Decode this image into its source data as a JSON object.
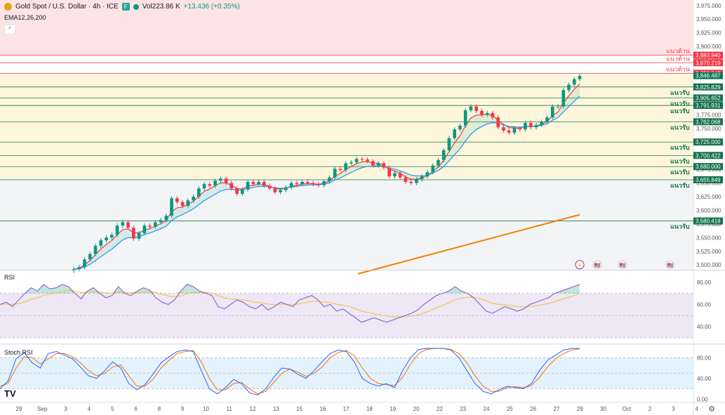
{
  "header": {
    "symbol": "Gold Spot / U.S. Dollar · 4h · ICE",
    "volume": "Vol223.86 K",
    "change": "+13.436 (+0.35%)",
    "indicator": "EMA12,26,200",
    "flag_label": "F"
  },
  "colors": {
    "up": "#089981",
    "down": "#f23645",
    "ema12": "#f23645",
    "ema26": "#2196f3",
    "ema200": "#f57c00",
    "resistance_label": "#f23645",
    "support_label": "#089981"
  },
  "chart_data": {
    "type": "candlestick",
    "title": "Gold Spot / U.S. Dollar · 4h · ICE",
    "ylim": [
      3490,
      3985
    ],
    "y_ticks": [
      "3,975.000",
      "3,950.000",
      "3,925.000",
      "3,900.000",
      "3,875.000",
      "3,850.000",
      "3,825.000",
      "3,800.000",
      "3,775.000",
      "3,750.000",
      "3,725.000",
      "3,700.000",
      "3,675.000",
      "3,650.000",
      "3,625.000",
      "3,600.000",
      "3,575.000",
      "3,550.000",
      "3,525.000",
      "3,500.000"
    ],
    "x_ticks": [
      "29",
      "Sep",
      "3",
      "4",
      "5",
      "6",
      "8",
      "9",
      "10",
      "11",
      "12",
      "13",
      "15",
      "16",
      "17",
      "18",
      "19",
      "20",
      "22",
      "23",
      "24",
      "25",
      "26",
      "27",
      "29",
      "30",
      "Oct",
      "2",
      "3",
      "4"
    ],
    "resistance_levels": [
      {
        "price": 3883.94,
        "label": "3,883.940",
        "name": "แนวต้าน"
      },
      {
        "price": 3870.219,
        "label": "3,870.219",
        "name": "แนวต้าน"
      },
      {
        "price": 3850.849,
        "label": "3,850.849",
        "name": "แนวต้าน"
      }
    ],
    "support_levels": [
      {
        "price": 3825.829,
        "label": "3,825.829",
        "name": "แนวรับ"
      },
      {
        "price": 3805.652,
        "label": "3,805.652",
        "name": "แนวรับ"
      },
      {
        "price": 3791.931,
        "label": "3,791.931",
        "name": "แนวรับ"
      },
      {
        "price": 3762.068,
        "label": "3,762.068",
        "name": "แนวรับ"
      },
      {
        "price": 3725.0,
        "label": "3,725.000",
        "name": "แนวรับ"
      },
      {
        "price": 3700.422,
        "label": "3,700.422",
        "name": "แนวรับ"
      },
      {
        "price": 3680.0,
        "label": "3,680.000",
        "name": "แนวรับ"
      },
      {
        "price": 3655.849,
        "label": "3,655.849",
        "name": "แนวรับ"
      },
      {
        "price": 3580.418,
        "label": "3,580.418",
        "name": "แนวรับ"
      }
    ],
    "current_price": {
      "price": 3846.487,
      "label": "3,846.487"
    },
    "closes": [
      3492,
      3496,
      3510,
      3520,
      3535,
      3545,
      3550,
      3555,
      3572,
      3578,
      3568,
      3548,
      3558,
      3572,
      3570,
      3578,
      3582,
      3590,
      3622,
      3615,
      3608,
      3618,
      3625,
      3640,
      3648,
      3645,
      3654,
      3658,
      3650,
      3640,
      3630,
      3638,
      3652,
      3648,
      3652,
      3645,
      3640,
      3633,
      3637,
      3642,
      3650,
      3648,
      3652,
      3650,
      3648,
      3646,
      3653,
      3660,
      3676,
      3674,
      3686,
      3688,
      3694,
      3693,
      3690,
      3682,
      3686,
      3678,
      3662,
      3668,
      3660,
      3652,
      3650,
      3657,
      3662,
      3670,
      3682,
      3692,
      3710,
      3732,
      3748,
      3755,
      3783,
      3790,
      3782,
      3775,
      3778,
      3770,
      3752,
      3746,
      3742,
      3750,
      3748,
      3760,
      3752,
      3756,
      3762,
      3770,
      3790,
      3790,
      3820,
      3830,
      3840,
      3846
    ],
    "ema200": {
      "start": 3490,
      "end": 3592
    },
    "legend": [
      "EMA 12",
      "EMA 26",
      "EMA 200"
    ]
  },
  "rsi": {
    "title": "RSI",
    "ticks": [
      "80.00",
      "60.00",
      "40.00"
    ],
    "values": [
      60,
      62,
      58,
      64,
      70,
      75,
      72,
      78,
      74,
      75,
      78,
      76,
      70,
      65,
      72,
      75,
      70,
      66,
      68,
      76,
      70,
      68,
      72,
      75,
      73,
      66,
      62,
      60,
      64,
      72,
      78,
      76,
      72,
      70,
      68,
      58,
      56,
      60,
      64,
      62,
      58,
      56,
      60,
      55,
      58,
      62,
      60,
      58,
      64,
      66,
      68,
      64,
      58,
      60,
      54,
      56,
      52,
      48,
      44,
      46,
      48,
      46,
      44,
      46,
      48,
      50,
      52,
      55,
      60,
      64,
      68,
      70,
      72,
      76,
      72,
      70,
      66,
      60,
      54,
      52,
      55,
      58,
      56,
      54,
      56,
      60,
      62,
      64,
      66,
      70,
      72,
      74,
      76,
      78
    ]
  },
  "stoch": {
    "title": "Stoch RSI",
    "ticks": [
      "80.00",
      "40.00",
      "0.00"
    ],
    "k": [
      20,
      35,
      78,
      90,
      70,
      60,
      88,
      92,
      85,
      78,
      62,
      45,
      40,
      55,
      72,
      60,
      30,
      18,
      28,
      48,
      70,
      82,
      92,
      95,
      92,
      55,
      20,
      10,
      22,
      38,
      30,
      12,
      8,
      20,
      42,
      60,
      58,
      48,
      40,
      55,
      72,
      88,
      95,
      92,
      72,
      40,
      30,
      25,
      30,
      22,
      55,
      80,
      96,
      98,
      98,
      98,
      95,
      80,
      55,
      30,
      15,
      10,
      18,
      25,
      22,
      20,
      30,
      55,
      75,
      85,
      95,
      98,
      98
    ],
    "d": [
      25,
      30,
      60,
      82,
      80,
      68,
      78,
      88,
      88,
      82,
      70,
      55,
      45,
      50,
      62,
      66,
      45,
      25,
      25,
      38,
      60,
      75,
      88,
      92,
      94,
      72,
      40,
      18,
      18,
      30,
      32,
      20,
      10,
      15,
      32,
      50,
      58,
      52,
      44,
      50,
      62,
      80,
      90,
      94,
      84,
      60,
      40,
      30,
      28,
      26,
      42,
      68,
      88,
      96,
      98,
      98,
      96,
      88,
      70,
      45,
      25,
      15,
      15,
      22,
      24,
      22,
      26,
      42,
      62,
      78,
      88,
      95,
      97
    ]
  },
  "events": [
    {
      "name": "lightning-icon",
      "glyph": "⚡"
    },
    {
      "name": "us-flag-icon",
      "glyph": "🇺🇸"
    },
    {
      "name": "us-flag-icon-2",
      "glyph": "🇺🇸"
    },
    {
      "name": "us-flag-icon-3",
      "glyph": "🇺🇸"
    }
  ],
  "footer": {
    "brand": "TV",
    "settings_glyph": "⚙"
  }
}
